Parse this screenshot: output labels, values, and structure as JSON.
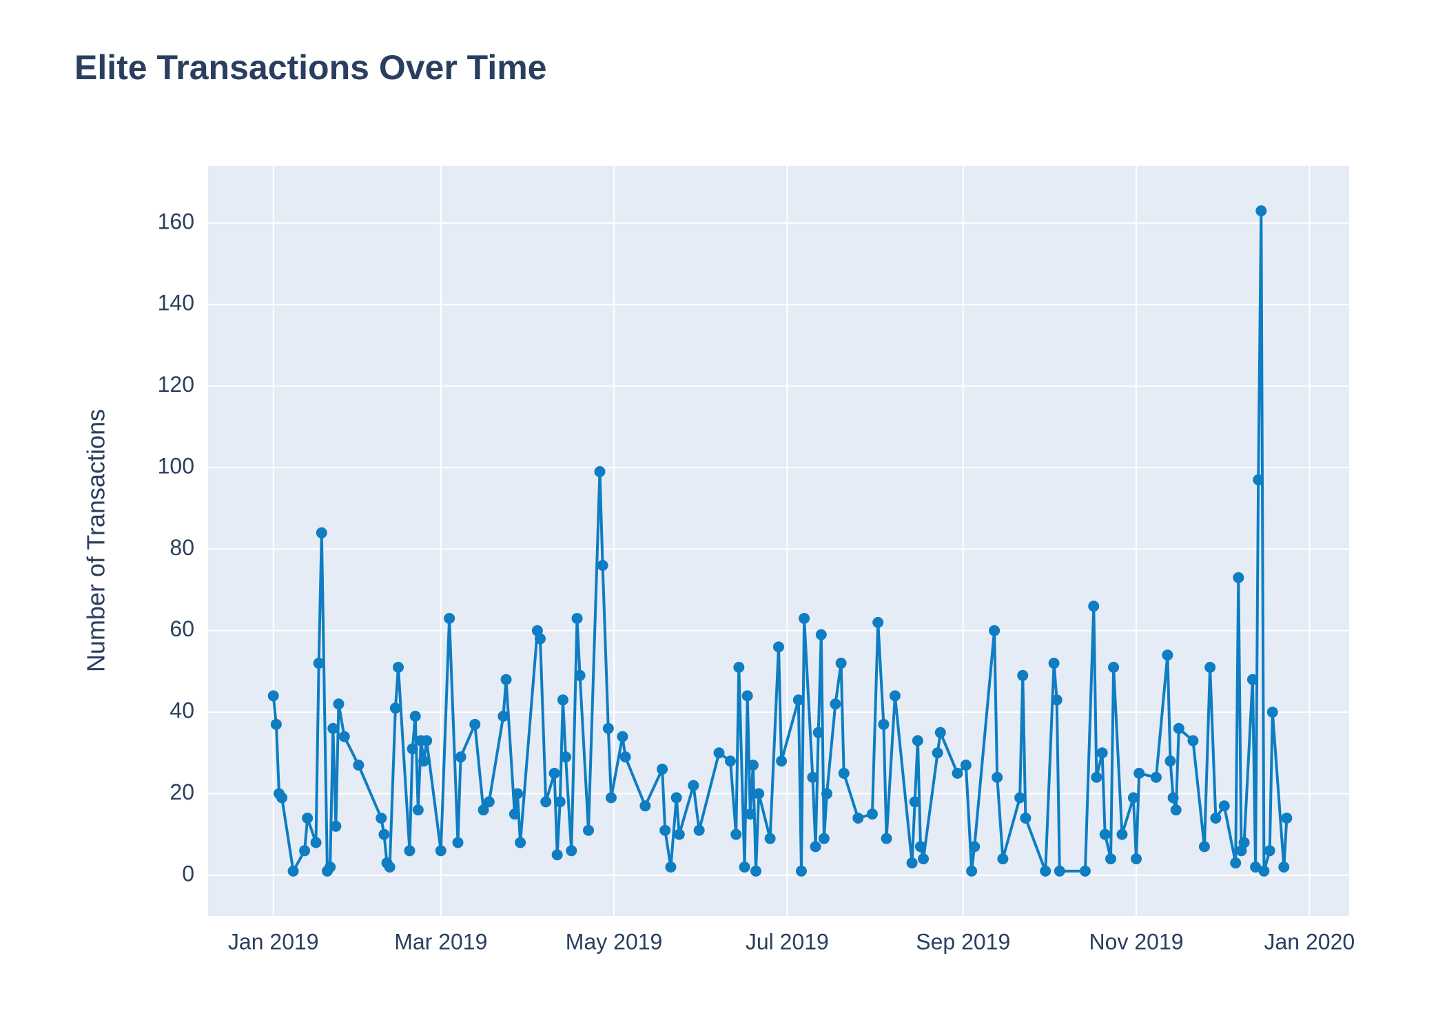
{
  "chart_data": {
    "type": "line",
    "title": "Elite Transactions Over Time",
    "y_label": "Number of Transactions",
    "x": [
      "2019-01-01",
      "2019-01-02",
      "2019-01-03",
      "2019-01-04",
      "2019-01-08",
      "2019-01-12",
      "2019-01-13",
      "2019-01-16",
      "2019-01-17",
      "2019-01-18",
      "2019-01-20",
      "2019-01-21",
      "2019-01-22",
      "2019-01-23",
      "2019-01-24",
      "2019-01-26",
      "2019-01-31",
      "2019-02-08",
      "2019-02-09",
      "2019-02-10",
      "2019-02-11",
      "2019-02-13",
      "2019-02-14",
      "2019-02-18",
      "2019-02-19",
      "2019-02-20",
      "2019-02-21",
      "2019-02-22",
      "2019-02-23",
      "2019-02-24",
      "2019-03-01",
      "2019-03-04",
      "2019-03-07",
      "2019-03-08",
      "2019-03-13",
      "2019-03-16",
      "2019-03-18",
      "2019-03-23",
      "2019-03-24",
      "2019-03-27",
      "2019-03-28",
      "2019-03-29",
      "2019-04-04",
      "2019-04-05",
      "2019-04-07",
      "2019-04-10",
      "2019-04-11",
      "2019-04-12",
      "2019-04-13",
      "2019-04-14",
      "2019-04-16",
      "2019-04-18",
      "2019-04-19",
      "2019-04-22",
      "2019-04-26",
      "2019-04-27",
      "2019-04-29",
      "2019-04-30",
      "2019-05-04",
      "2019-05-05",
      "2019-05-12",
      "2019-05-18",
      "2019-05-19",
      "2019-05-21",
      "2019-05-23",
      "2019-05-24",
      "2019-05-29",
      "2019-05-31",
      "2019-06-07",
      "2019-06-11",
      "2019-06-13",
      "2019-06-14",
      "2019-06-16",
      "2019-06-17",
      "2019-06-18",
      "2019-06-19",
      "2019-06-20",
      "2019-06-21",
      "2019-06-25",
      "2019-06-28",
      "2019-06-29",
      "2019-07-05",
      "2019-07-06",
      "2019-07-07",
      "2019-07-10",
      "2019-07-11",
      "2019-07-12",
      "2019-07-13",
      "2019-07-14",
      "2019-07-15",
      "2019-07-18",
      "2019-07-20",
      "2019-07-21",
      "2019-07-26",
      "2019-07-31",
      "2019-08-02",
      "2019-08-04",
      "2019-08-05",
      "2019-08-08",
      "2019-08-14",
      "2019-08-15",
      "2019-08-16",
      "2019-08-17",
      "2019-08-18",
      "2019-08-23",
      "2019-08-24",
      "2019-08-30",
      "2019-09-02",
      "2019-09-04",
      "2019-09-05",
      "2019-09-12",
      "2019-09-13",
      "2019-09-15",
      "2019-09-21",
      "2019-09-22",
      "2019-09-23",
      "2019-09-30",
      "2019-10-03",
      "2019-10-04",
      "2019-10-05",
      "2019-10-14",
      "2019-10-17",
      "2019-10-18",
      "2019-10-20",
      "2019-10-21",
      "2019-10-23",
      "2019-10-24",
      "2019-10-27",
      "2019-10-31",
      "2019-11-01",
      "2019-11-02",
      "2019-11-08",
      "2019-11-12",
      "2019-11-13",
      "2019-11-14",
      "2019-11-15",
      "2019-11-16",
      "2019-11-21",
      "2019-11-25",
      "2019-11-27",
      "2019-11-29",
      "2019-12-02",
      "2019-12-06",
      "2019-12-07",
      "2019-12-08",
      "2019-12-09",
      "2019-12-12",
      "2019-12-13",
      "2019-12-14",
      "2019-12-15",
      "2019-12-16",
      "2019-12-18",
      "2019-12-19",
      "2019-12-23",
      "2019-12-24"
    ],
    "values": [
      44,
      37,
      20,
      19,
      1,
      6,
      14,
      8,
      52,
      84,
      1,
      2,
      36,
      12,
      42,
      34,
      27,
      14,
      10,
      3,
      2,
      41,
      51,
      6,
      31,
      39,
      16,
      33,
      28,
      33,
      6,
      63,
      8,
      29,
      37,
      16,
      18,
      39,
      48,
      15,
      20,
      8,
      60,
      58,
      18,
      25,
      5,
      18,
      43,
      29,
      6,
      63,
      49,
      11,
      99,
      76,
      36,
      19,
      34,
      29,
      17,
      26,
      11,
      2,
      19,
      10,
      22,
      11,
      30,
      28,
      10,
      51,
      2,
      44,
      15,
      27,
      1,
      20,
      9,
      56,
      28,
      43,
      1,
      63,
      24,
      7,
      35,
      59,
      9,
      20,
      42,
      52,
      25,
      14,
      15,
      62,
      37,
      9,
      44,
      3,
      18,
      33,
      7,
      4,
      30,
      35,
      25,
      27,
      1,
      7,
      60,
      24,
      4,
      19,
      49,
      14,
      1,
      52,
      43,
      1,
      1,
      66,
      24,
      30,
      10,
      4,
      51,
      10,
      19,
      4,
      25,
      24,
      54,
      28,
      19,
      16,
      36,
      33,
      7,
      51,
      14,
      17,
      3,
      73,
      6,
      8,
      48,
      2,
      97,
      163,
      1,
      6,
      40,
      2,
      14
    ],
    "color": "#0e7dc2",
    "xlim": [
      "2018-12-09",
      "2020-01-15"
    ],
    "xticks": [
      {
        "value": "2019-01-01",
        "label": "Jan 2019"
      },
      {
        "value": "2019-03-01",
        "label": "Mar 2019"
      },
      {
        "value": "2019-05-01",
        "label": "May 2019"
      },
      {
        "value": "2019-07-01",
        "label": "Jul 2019"
      },
      {
        "value": "2019-09-01",
        "label": "Sep 2019"
      },
      {
        "value": "2019-11-01",
        "label": "Nov 2019"
      },
      {
        "value": "2020-01-01",
        "label": "Jan 2020"
      }
    ],
    "ylim": [
      -10,
      174
    ],
    "yticks": [
      0,
      20,
      40,
      60,
      80,
      100,
      120,
      140,
      160
    ],
    "grid": true
  }
}
